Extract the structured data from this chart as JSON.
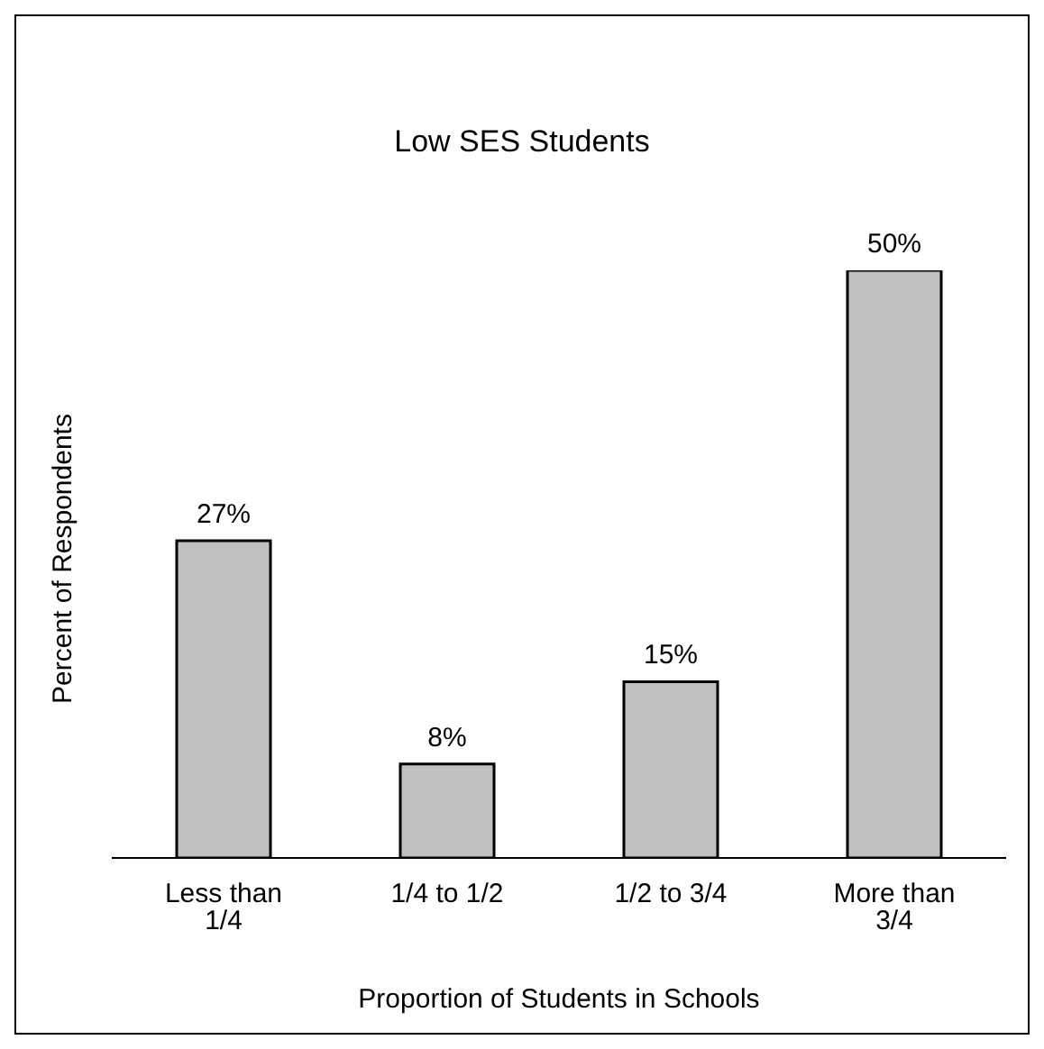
{
  "chart_data": {
    "type": "bar",
    "title": "Low SES Students",
    "xlabel": "Proportion of Students in Schools",
    "ylabel": "Percent of Respondents",
    "categories": [
      "Less than 1/4",
      "1/4 to 1/2",
      "1/2 to 3/4",
      "More than 3/4"
    ],
    "values": [
      27,
      8,
      15,
      50
    ],
    "value_labels": [
      "27%",
      "8%",
      "15%",
      "50%"
    ],
    "color": "#c0c0c0",
    "grid": false,
    "legend": false
  }
}
